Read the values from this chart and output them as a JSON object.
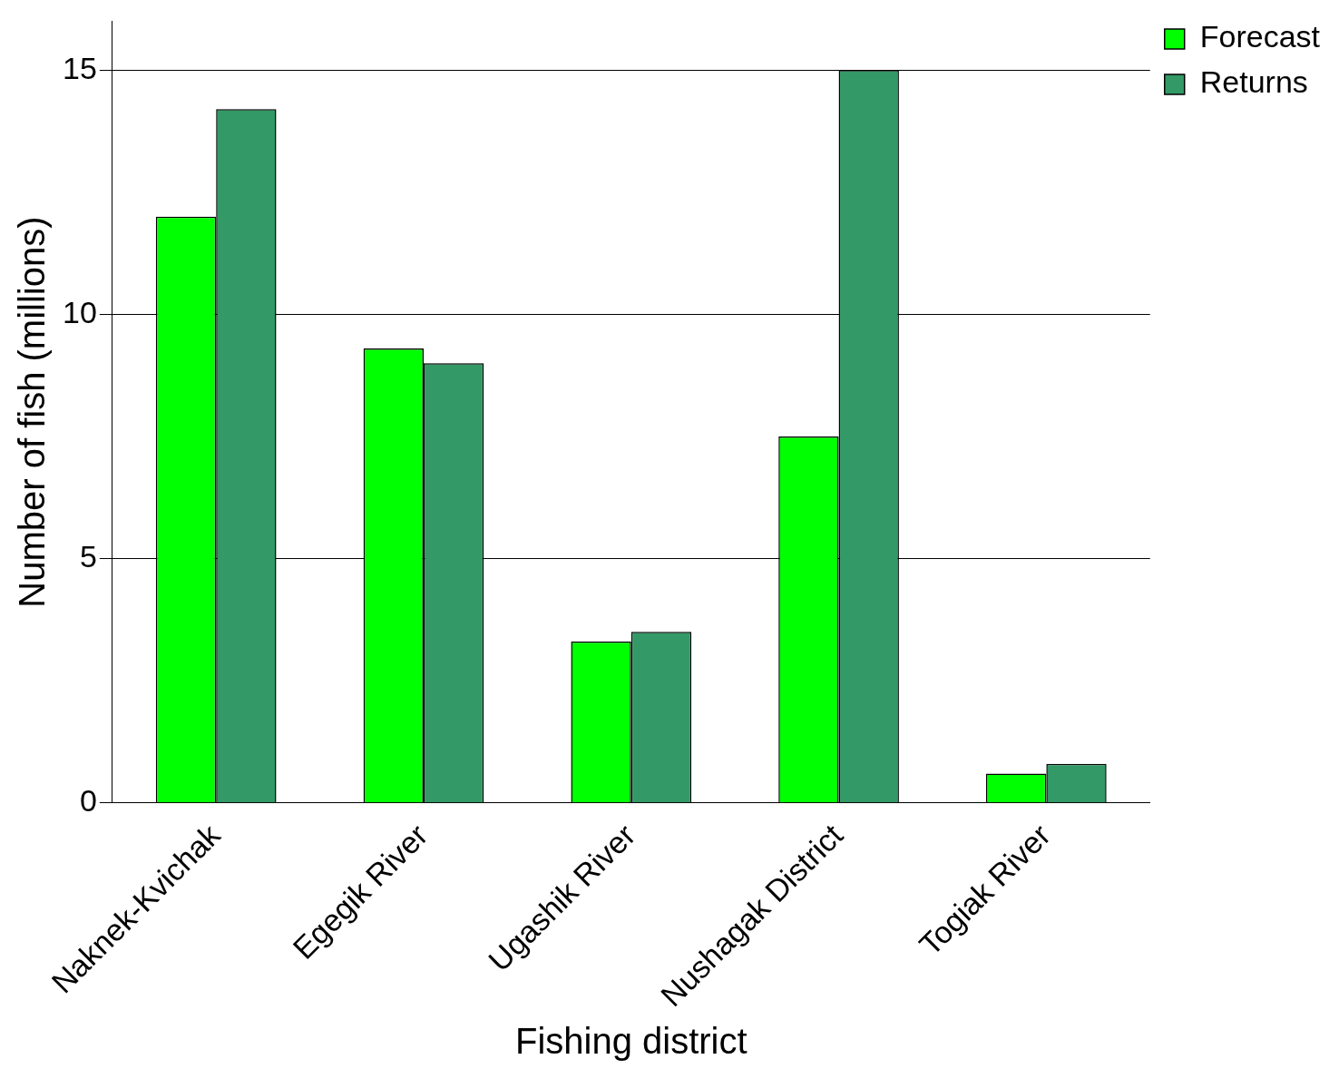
{
  "chart_data": {
    "type": "bar",
    "xlabel": "Fishing district",
    "ylabel": "Number of fish (millions)",
    "categories": [
      "Naknek-Kvichak",
      "Egegik River",
      "Ugashik River",
      "Nushagak District",
      "Togiak River"
    ],
    "series": [
      {
        "name": "Forecast",
        "color": "#00ff00",
        "values": [
          12.0,
          9.3,
          3.3,
          7.5,
          0.6
        ]
      },
      {
        "name": "Returns",
        "color": "#339966",
        "values": [
          14.2,
          9.0,
          3.5,
          15.0,
          0.8
        ]
      }
    ],
    "ylim": [
      0,
      16
    ],
    "yticks": [
      0,
      5,
      10,
      15
    ],
    "grid": "y",
    "legend": "top right"
  }
}
